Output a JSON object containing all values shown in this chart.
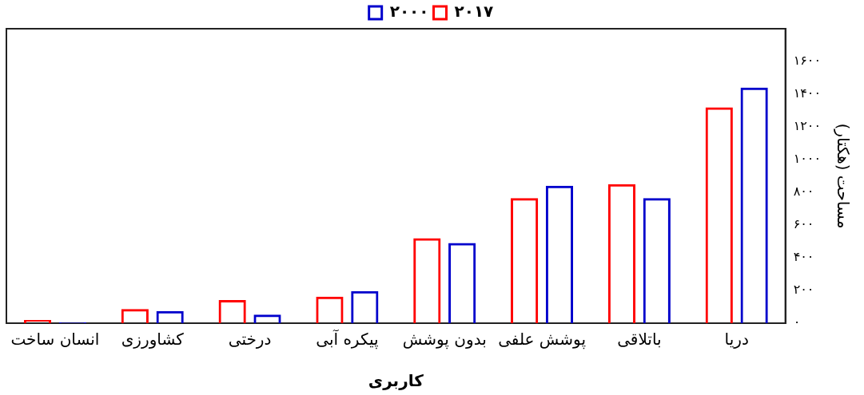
{
  "chart_data": {
    "type": "bar",
    "xlabel": "کاربری",
    "ylabel": "مساحت (هکتار)",
    "categories": [
      "انسان ساخت",
      "کشاورزی",
      "درختی",
      "پیکره آبی",
      "بدون پوشش",
      "پوشش علفی",
      "باتلاقی",
      "دریا"
    ],
    "series": [
      {
        "name": "۲۰۱۷",
        "color": "#ff0000",
        "values": [
          20,
          86,
          142,
          162,
          520,
          765,
          850,
          1320
        ]
      },
      {
        "name": "۲۰۰۰",
        "color": "#0000cc",
        "values": [
          5,
          75,
          52,
          196,
          490,
          840,
          765,
          1440
        ]
      }
    ],
    "ylim": [
      0,
      1800
    ],
    "yticks": [
      {
        "value": 0,
        "label": "۰"
      },
      {
        "value": 200,
        "label": "۲۰۰"
      },
      {
        "value": 400,
        "label": "۴۰۰"
      },
      {
        "value": 600,
        "label": "۶۰۰"
      },
      {
        "value": 800,
        "label": "۸۰۰"
      },
      {
        "value": 1000,
        "label": "۱۰۰۰"
      },
      {
        "value": 1200,
        "label": "۱۲۰۰"
      },
      {
        "value": 1400,
        "label": "۱۴۰۰"
      },
      {
        "value": 1600,
        "label": "۱۶۰۰"
      }
    ],
    "grid": false,
    "legend": "top"
  }
}
